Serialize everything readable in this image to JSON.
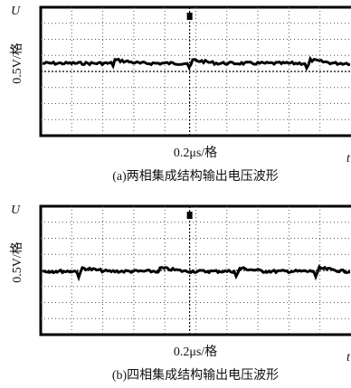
{
  "panels": [
    {
      "axis_u": "U",
      "y_label": "0.5V/格",
      "x_label": "0.2μs/格",
      "axis_t": "t",
      "caption": "(a)两相集成结构输出电压波形"
    },
    {
      "axis_u": "U",
      "y_label": "0.5V/格",
      "x_label": "0.2μs/格",
      "axis_t": "t",
      "caption": "(b)四相集成结构输出电压波形"
    }
  ]
}
